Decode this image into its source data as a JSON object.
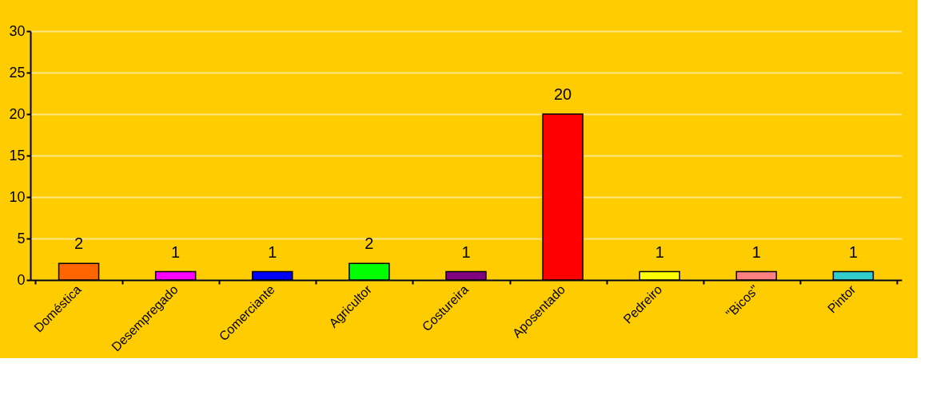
{
  "chart_data": {
    "type": "bar",
    "categories": [
      "Doméstica",
      "Desempregado",
      "Comerciante",
      "Agricultor",
      "Costureira",
      "Aposentado",
      "Pedreiro",
      "\"Bicos\"",
      "Pintor"
    ],
    "values": [
      2,
      1,
      1,
      2,
      1,
      20,
      1,
      1,
      1
    ],
    "colors": [
      "#ff6600",
      "#ff00ff",
      "#0000ff",
      "#00ff00",
      "#800080",
      "#ff0000",
      "#ffff00",
      "#ff8080",
      "#33cccc"
    ],
    "ylim": [
      0,
      30
    ],
    "yticks": [
      0,
      5,
      10,
      15,
      20,
      25,
      30
    ],
    "grid": "y",
    "data_labels": true
  }
}
